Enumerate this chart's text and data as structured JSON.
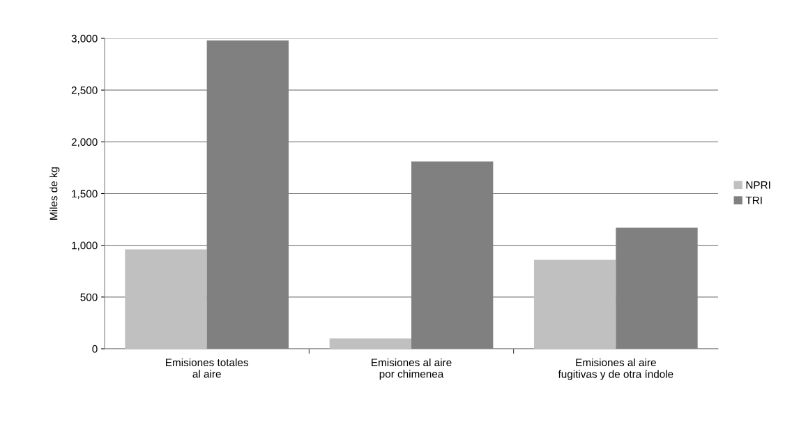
{
  "chart_data": {
    "type": "bar",
    "ylabel": "Miles de kg",
    "categories": [
      "Emisiones totales\nal aire",
      "Emisiones al aire\npor chimenea",
      "Emisiones al aire\nfugitivas y de otra índole"
    ],
    "series": [
      {
        "name": "NPRI",
        "color": "#c0c0c0",
        "values": [
          960,
          100,
          860
        ]
      },
      {
        "name": "TRI",
        "color": "#808080",
        "values": [
          2980,
          1810,
          1170
        ]
      }
    ],
    "ylim": [
      0,
      3000
    ],
    "yticks": [
      {
        "value": 0,
        "label": "0"
      },
      {
        "value": 500,
        "label": "500"
      },
      {
        "value": 1000,
        "label": "1,000"
      },
      {
        "value": 1500,
        "label": "1,500"
      },
      {
        "value": 2000,
        "label": "2,000"
      },
      {
        "value": 2500,
        "label": "2,500"
      },
      {
        "value": 3000,
        "label": "3,000"
      }
    ],
    "grid": "y",
    "legend": "right"
  }
}
